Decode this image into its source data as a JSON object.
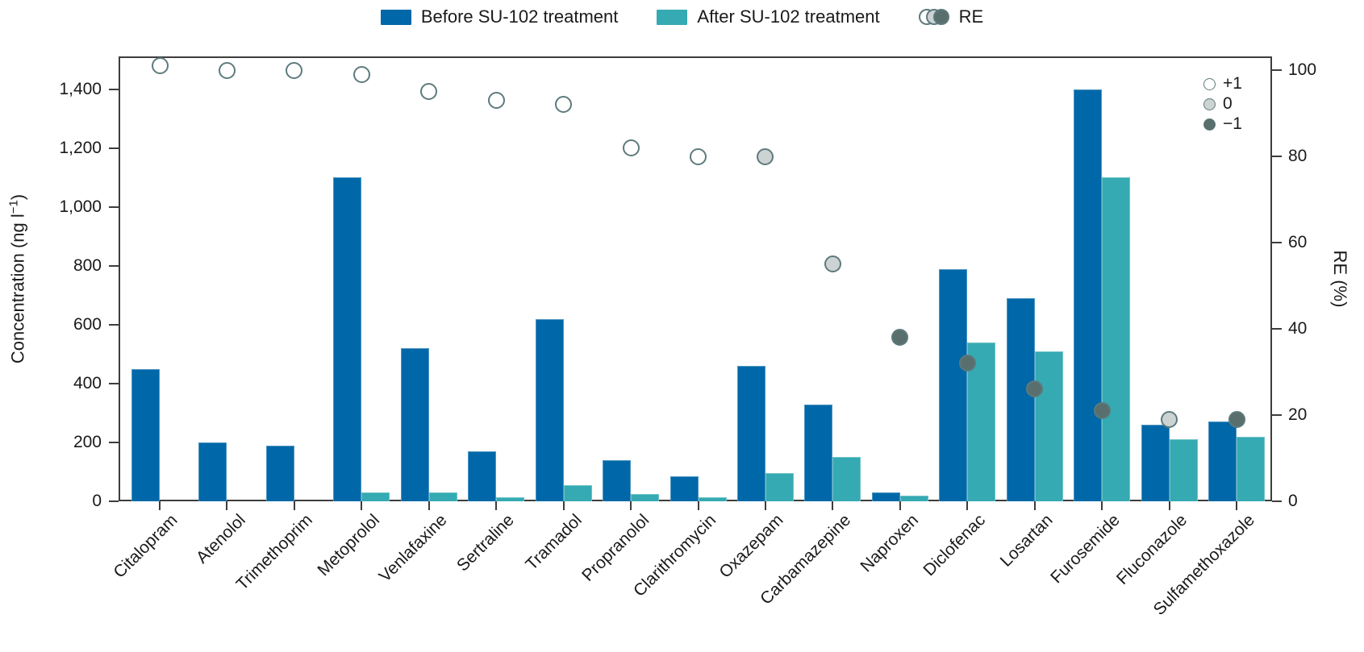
{
  "legend": {
    "before": "Before SU-102 treatment",
    "after": "After SU-102 treatment",
    "re": "RE"
  },
  "axes": {
    "left_label_prefix": "Concentration (ng l",
    "left_label_sup": "−1",
    "left_label_suffix": ")",
    "right_label": "RE (%)"
  },
  "marker_legend": {
    "items": [
      {
        "label": "+1",
        "charge": "+1",
        "fill": "#ffffff"
      },
      {
        "label": "0",
        "charge": "0",
        "fill": "#cdd2d3"
      },
      {
        "label": "−1",
        "charge": "-1",
        "fill": "#586f6d"
      }
    ]
  },
  "colors": {
    "bar_before": "#0068a8",
    "bar_after": "#35aab3",
    "marker_outline": "#5d7a7c",
    "marker_positive": "#ffffff",
    "marker_neutral": "#cdd2d3",
    "marker_negative": "#586f6d",
    "axis": "#3d3d3d",
    "text": "#1a1a1a"
  },
  "chart_data": {
    "type": "bar",
    "title": "",
    "categories": [
      "Citalopram",
      "Atenolol",
      "Trimethoprim",
      "Metoprolol",
      "Venlafaxine",
      "Sertraline",
      "Tramadol",
      "Propranolol",
      "Clarithromycin",
      "Oxazepam",
      "Carbamazepine",
      "Naproxen",
      "Diclofenac",
      "Losartan",
      "Furosemide",
      "Fluconazole",
      "Sulfamethoxazole"
    ],
    "series": [
      {
        "name": "Before SU-102 treatment",
        "type": "bar",
        "yaxis": "left",
        "color": "#0068a8",
        "values": [
          450,
          200,
          190,
          1100,
          520,
          170,
          620,
          140,
          85,
          460,
          330,
          30,
          790,
          690,
          1400,
          260,
          270
        ]
      },
      {
        "name": "After SU-102 treatment",
        "type": "bar",
        "yaxis": "left",
        "color": "#35aab3",
        "values": [
          0,
          0,
          0,
          30,
          30,
          15,
          55,
          25,
          15,
          95,
          150,
          20,
          540,
          510,
          1100,
          210,
          220
        ]
      },
      {
        "name": "RE",
        "type": "scatter",
        "yaxis": "right",
        "outline": "#5d7a7c",
        "values": [
          101,
          100,
          100,
          99,
          95,
          93,
          92,
          82,
          80,
          80,
          55,
          38,
          32,
          26,
          21,
          19,
          19
        ],
        "charge": [
          "+1",
          "+1",
          "+1",
          "+1",
          "+1",
          "+1",
          "+1",
          "+1",
          "+1",
          "0",
          "0",
          "-1",
          "-1",
          "-1",
          "-1",
          "0",
          "-1"
        ]
      }
    ],
    "charge_fills": {
      "+1": "#ffffff",
      "0": "#cdd2d3",
      "-1": "#586f6d"
    },
    "y_left": {
      "label": "Concentration (ng l−1)",
      "tick_values": [
        0,
        200,
        400,
        600,
        800,
        1000,
        1200,
        1400
      ],
      "tick_labels": [
        "0",
        "200",
        "400",
        "600",
        "800",
        "1,000",
        "1,200",
        "1,400"
      ],
      "range": [
        0,
        1512
      ]
    },
    "y_right": {
      "label": "RE (%)",
      "tick_values": [
        0,
        20,
        40,
        60,
        80,
        100
      ],
      "tick_labels": [
        "0",
        "20",
        "40",
        "60",
        "80",
        "100"
      ],
      "range": [
        0,
        103.2
      ]
    },
    "grid": false,
    "legend_position": "top",
    "x_tick_rotation": 45
  }
}
